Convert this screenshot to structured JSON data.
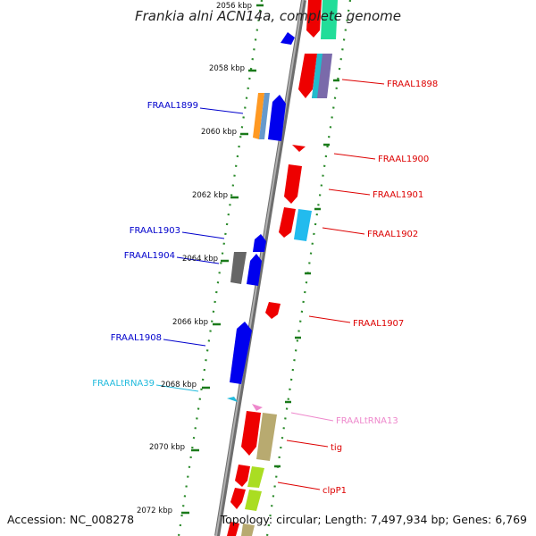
{
  "title": "Frankia alni ACN14a, complete genome",
  "footer": {
    "accession": "Accession: NC_008278",
    "topology": "Topology: circular; Length: 7,497,934 bp; Genes: 6,769"
  },
  "colors": {
    "backbone": "#8a8a8a",
    "tick": "#1a7a1a",
    "forward_label": "#0000cc",
    "reverse_label": "#dd0000",
    "trna_forward": "#22bbdd",
    "trna_reverse": "#ee88cc"
  },
  "tick_labels": [
    "2056 kbp",
    "2058 kbp",
    "2060 kbp",
    "2062 kbp",
    "2064 kbp",
    "2066 kbp",
    "2068 kbp",
    "2070 kbp",
    "2072 kbp"
  ],
  "gene_labels": {
    "FRAAL1898": "FRAAL1898",
    "FRAAL1899": "FRAAL1899",
    "FRAAL1900": "FRAAL1900",
    "FRAAL1901": "FRAAL1901",
    "FRAAL1902": "FRAAL1902",
    "FRAAL1903": "FRAAL1903",
    "FRAAL1904": "FRAAL1904",
    "FRAAL1907": "FRAAL1907",
    "FRAAL1908": "FRAAL1908",
    "FRAALtRNA39": "FRAALtRNA39",
    "FRAALtRNA13": "FRAALtRNA13",
    "tig": "tig",
    "clpP1": "clpP1"
  }
}
